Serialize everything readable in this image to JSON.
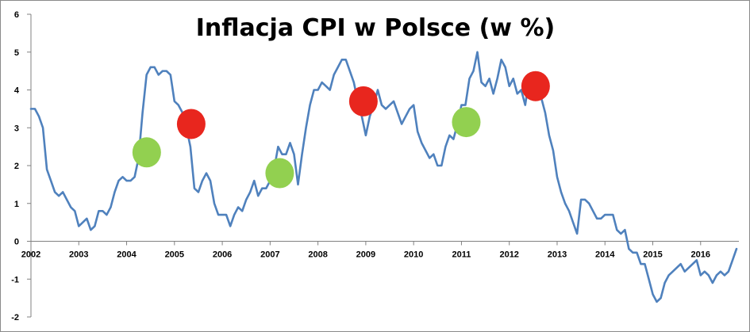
{
  "chart_data": {
    "type": "line",
    "title": "Inflacja CPI w Polsce (w %)",
    "xlabel": "",
    "ylabel": "",
    "ylim": [
      -2,
      6
    ],
    "xlim": [
      2002,
      2016.8
    ],
    "yticks": [
      6,
      5,
      4,
      3,
      2,
      1,
      0,
      -1,
      -2
    ],
    "xticks": [
      "2002",
      "2003",
      "2004",
      "2005",
      "2006",
      "2007",
      "2008",
      "2009",
      "2010",
      "2011",
      "2012",
      "2013",
      "2014",
      "2015",
      "2016"
    ],
    "grid": false,
    "legend": "none",
    "colors": {
      "line": "#4f81bd",
      "green_marker": "#92d050",
      "red_marker": "#e8261e",
      "axis": "#808080",
      "frame": "#8a8a8a"
    },
    "series": [
      {
        "values": [
          [
            2002.0,
            3.5
          ],
          [
            2002.083,
            3.5
          ],
          [
            2002.167,
            3.3
          ],
          [
            2002.25,
            3.0
          ],
          [
            2002.333,
            1.9
          ],
          [
            2002.417,
            1.6
          ],
          [
            2002.5,
            1.3
          ],
          [
            2002.583,
            1.2
          ],
          [
            2002.667,
            1.3
          ],
          [
            2002.75,
            1.1
          ],
          [
            2002.833,
            0.9
          ],
          [
            2002.917,
            0.8
          ],
          [
            2003.0,
            0.4
          ],
          [
            2003.083,
            0.5
          ],
          [
            2003.167,
            0.6
          ],
          [
            2003.25,
            0.3
          ],
          [
            2003.333,
            0.4
          ],
          [
            2003.417,
            0.8
          ],
          [
            2003.5,
            0.8
          ],
          [
            2003.583,
            0.7
          ],
          [
            2003.667,
            0.9
          ],
          [
            2003.75,
            1.3
          ],
          [
            2003.833,
            1.6
          ],
          [
            2003.917,
            1.7
          ],
          [
            2004.0,
            1.6
          ],
          [
            2004.083,
            1.6
          ],
          [
            2004.167,
            1.7
          ],
          [
            2004.25,
            2.2
          ],
          [
            2004.333,
            3.4
          ],
          [
            2004.417,
            4.4
          ],
          [
            2004.5,
            4.6
          ],
          [
            2004.583,
            4.6
          ],
          [
            2004.667,
            4.4
          ],
          [
            2004.75,
            4.5
          ],
          [
            2004.833,
            4.5
          ],
          [
            2004.917,
            4.4
          ],
          [
            2005.0,
            3.7
          ],
          [
            2005.083,
            3.6
          ],
          [
            2005.167,
            3.4
          ],
          [
            2005.25,
            3.0
          ],
          [
            2005.333,
            2.5
          ],
          [
            2005.417,
            1.4
          ],
          [
            2005.5,
            1.3
          ],
          [
            2005.583,
            1.6
          ],
          [
            2005.667,
            1.8
          ],
          [
            2005.75,
            1.6
          ],
          [
            2005.833,
            1.0
          ],
          [
            2005.917,
            0.7
          ],
          [
            2006.0,
            0.7
          ],
          [
            2006.083,
            0.7
          ],
          [
            2006.167,
            0.4
          ],
          [
            2006.25,
            0.7
          ],
          [
            2006.333,
            0.9
          ],
          [
            2006.417,
            0.8
          ],
          [
            2006.5,
            1.1
          ],
          [
            2006.583,
            1.3
          ],
          [
            2006.667,
            1.6
          ],
          [
            2006.75,
            1.2
          ],
          [
            2006.833,
            1.4
          ],
          [
            2006.917,
            1.4
          ],
          [
            2007.0,
            1.6
          ],
          [
            2007.083,
            1.9
          ],
          [
            2007.167,
            2.5
          ],
          [
            2007.25,
            2.3
          ],
          [
            2007.333,
            2.3
          ],
          [
            2007.417,
            2.6
          ],
          [
            2007.5,
            2.3
          ],
          [
            2007.583,
            1.5
          ],
          [
            2007.667,
            2.3
          ],
          [
            2007.75,
            3.0
          ],
          [
            2007.833,
            3.6
          ],
          [
            2007.917,
            4.0
          ],
          [
            2008.0,
            4.0
          ],
          [
            2008.083,
            4.2
          ],
          [
            2008.167,
            4.1
          ],
          [
            2008.25,
            4.0
          ],
          [
            2008.333,
            4.4
          ],
          [
            2008.417,
            4.6
          ],
          [
            2008.5,
            4.8
          ],
          [
            2008.583,
            4.8
          ],
          [
            2008.667,
            4.5
          ],
          [
            2008.75,
            4.2
          ],
          [
            2008.833,
            3.7
          ],
          [
            2008.917,
            3.3
          ],
          [
            2009.0,
            2.8
          ],
          [
            2009.083,
            3.3
          ],
          [
            2009.167,
            3.6
          ],
          [
            2009.25,
            4.0
          ],
          [
            2009.333,
            3.6
          ],
          [
            2009.417,
            3.5
          ],
          [
            2009.5,
            3.6
          ],
          [
            2009.583,
            3.7
          ],
          [
            2009.667,
            3.4
          ],
          [
            2009.75,
            3.1
          ],
          [
            2009.833,
            3.3
          ],
          [
            2009.917,
            3.5
          ],
          [
            2010.0,
            3.6
          ],
          [
            2010.083,
            2.9
          ],
          [
            2010.167,
            2.6
          ],
          [
            2010.25,
            2.4
          ],
          [
            2010.333,
            2.2
          ],
          [
            2010.417,
            2.3
          ],
          [
            2010.5,
            2.0
          ],
          [
            2010.583,
            2.0
          ],
          [
            2010.667,
            2.5
          ],
          [
            2010.75,
            2.8
          ],
          [
            2010.833,
            2.7
          ],
          [
            2010.917,
            3.1
          ],
          [
            2011.0,
            3.6
          ],
          [
            2011.083,
            3.6
          ],
          [
            2011.167,
            4.3
          ],
          [
            2011.25,
            4.5
          ],
          [
            2011.333,
            5.0
          ],
          [
            2011.417,
            4.2
          ],
          [
            2011.5,
            4.1
          ],
          [
            2011.583,
            4.3
          ],
          [
            2011.667,
            3.9
          ],
          [
            2011.75,
            4.3
          ],
          [
            2011.833,
            4.8
          ],
          [
            2011.917,
            4.6
          ],
          [
            2012.0,
            4.1
          ],
          [
            2012.083,
            4.3
          ],
          [
            2012.167,
            3.9
          ],
          [
            2012.25,
            4.0
          ],
          [
            2012.333,
            3.6
          ],
          [
            2012.417,
            4.3
          ],
          [
            2012.5,
            4.0
          ],
          [
            2012.583,
            3.8
          ],
          [
            2012.667,
            3.8
          ],
          [
            2012.75,
            3.4
          ],
          [
            2012.833,
            2.8
          ],
          [
            2012.917,
            2.4
          ],
          [
            2013.0,
            1.7
          ],
          [
            2013.083,
            1.3
          ],
          [
            2013.167,
            1.0
          ],
          [
            2013.25,
            0.8
          ],
          [
            2013.333,
            0.5
          ],
          [
            2013.417,
            0.2
          ],
          [
            2013.5,
            1.1
          ],
          [
            2013.583,
            1.1
          ],
          [
            2013.667,
            1.0
          ],
          [
            2013.75,
            0.8
          ],
          [
            2013.833,
            0.6
          ],
          [
            2013.917,
            0.6
          ],
          [
            2014.0,
            0.7
          ],
          [
            2014.083,
            0.7
          ],
          [
            2014.167,
            0.7
          ],
          [
            2014.25,
            0.3
          ],
          [
            2014.333,
            0.2
          ],
          [
            2014.417,
            0.3
          ],
          [
            2014.5,
            -0.2
          ],
          [
            2014.583,
            -0.3
          ],
          [
            2014.667,
            -0.3
          ],
          [
            2014.75,
            -0.6
          ],
          [
            2014.833,
            -0.6
          ],
          [
            2014.917,
            -1.0
          ],
          [
            2015.0,
            -1.4
          ],
          [
            2015.083,
            -1.6
          ],
          [
            2015.167,
            -1.5
          ],
          [
            2015.25,
            -1.1
          ],
          [
            2015.333,
            -0.9
          ],
          [
            2015.417,
            -0.8
          ],
          [
            2015.5,
            -0.7
          ],
          [
            2015.583,
            -0.6
          ],
          [
            2015.667,
            -0.8
          ],
          [
            2015.75,
            -0.7
          ],
          [
            2015.833,
            -0.6
          ],
          [
            2015.917,
            -0.5
          ],
          [
            2016.0,
            -0.9
          ],
          [
            2016.083,
            -0.8
          ],
          [
            2016.167,
            -0.9
          ],
          [
            2016.25,
            -1.1
          ],
          [
            2016.333,
            -0.9
          ],
          [
            2016.417,
            -0.8
          ],
          [
            2016.5,
            -0.9
          ],
          [
            2016.583,
            -0.8
          ],
          [
            2016.667,
            -0.5
          ],
          [
            2016.75,
            -0.2
          ]
        ]
      }
    ],
    "markers": [
      {
        "color": "green",
        "x": 2004.42,
        "y": 2.35
      },
      {
        "color": "red",
        "x": 2005.35,
        "y": 3.1
      },
      {
        "color": "green",
        "x": 2007.2,
        "y": 1.8
      },
      {
        "color": "red",
        "x": 2008.95,
        "y": 3.7
      },
      {
        "color": "green",
        "x": 2011.1,
        "y": 3.15
      },
      {
        "color": "red",
        "x": 2012.55,
        "y": 4.1
      }
    ]
  }
}
